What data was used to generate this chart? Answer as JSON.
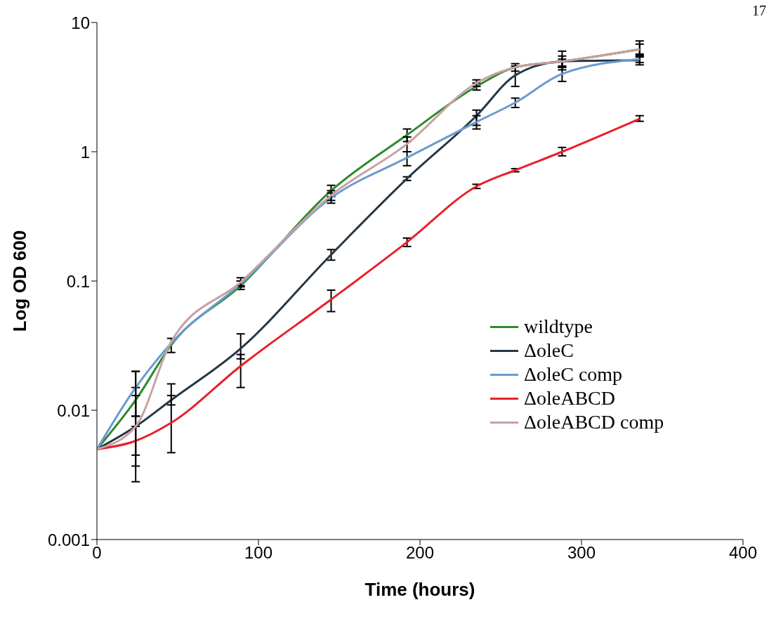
{
  "chart_data": {
    "type": "line",
    "xlabel": "Time (hours)",
    "ylabel": "Log OD 600",
    "annotations": [
      "17"
    ],
    "x": [
      0,
      24,
      46,
      89,
      145,
      192,
      235,
      259,
      288,
      336
    ],
    "series": [
      {
        "name": "wildtype",
        "color": "#2e8b2e",
        "values": [
          0.005,
          0.012,
          0.032,
          0.092,
          0.5,
          1.35,
          3.2,
          4.5,
          5.0,
          6.2
        ],
        "errors": [
          null,
          [
            0.009,
            0.015
          ],
          [
            0.028,
            0.036
          ],
          [
            0.086,
            0.1
          ],
          [
            0.45,
            0.55
          ],
          [
            1.2,
            1.5
          ],
          [
            3.0,
            3.4
          ],
          [
            4.2,
            4.8
          ],
          [
            4.5,
            5.5
          ],
          [
            5.7,
            6.8
          ]
        ]
      },
      {
        "name": "ΔoleC",
        "color": "#243746",
        "values": [
          0.005,
          0.0075,
          0.012,
          0.03,
          0.16,
          0.62,
          1.9,
          3.9,
          5.0,
          5.1
        ],
        "errors": [
          null,
          [
            0.0037,
            0.013
          ],
          [
            0.011,
            0.013
          ],
          [
            0.025,
            0.039
          ],
          [
            0.145,
            0.175
          ],
          [
            0.6,
            0.64
          ],
          [
            1.6,
            2.1
          ],
          [
            3.2,
            4.6
          ],
          [
            4.3,
            5.2
          ],
          [
            4.7,
            5.4
          ]
        ]
      },
      {
        "name": "ΔoleC comp",
        "color": "#6a9bd1",
        "values": [
          0.005,
          0.015,
          0.033,
          0.095,
          0.44,
          0.9,
          1.7,
          2.4,
          4.0,
          5.2
        ],
        "errors": [
          null,
          [
            0.009,
            0.02
          ],
          null,
          [
            0.09,
            0.1
          ],
          [
            0.4,
            0.48
          ],
          [
            0.78,
            1.0
          ],
          [
            1.5,
            1.9
          ],
          [
            2.2,
            2.6
          ],
          [
            3.5,
            4.5
          ],
          [
            4.9,
            5.5
          ]
        ]
      },
      {
        "name": "ΔoleABCD",
        "color": "#e8202a",
        "values": [
          0.005,
          0.0058,
          0.008,
          0.022,
          0.072,
          0.2,
          0.54,
          0.72,
          1.0,
          1.8
        ],
        "errors": [
          null,
          [
            0.0045,
            0.0075
          ],
          [
            0.0047,
            0.016
          ],
          [
            0.015,
            0.027
          ],
          [
            0.058,
            0.085
          ],
          [
            0.185,
            0.215
          ],
          [
            0.52,
            0.56
          ],
          [
            0.7,
            0.74
          ],
          [
            0.93,
            1.08
          ],
          [
            1.72,
            1.9
          ]
        ]
      },
      {
        "name": "ΔoleABCD comp",
        "color": "#c9a1a3",
        "values": [
          0.005,
          0.0075,
          0.034,
          0.098,
          0.46,
          1.15,
          3.4,
          4.5,
          5.0,
          6.2
        ],
        "errors": [
          null,
          [
            0.0028,
            0.02
          ],
          null,
          [
            0.092,
            0.106
          ],
          [
            0.42,
            0.5
          ],
          [
            1.0,
            1.3
          ],
          [
            3.2,
            3.6
          ],
          null,
          [
            4.6,
            6.0
          ],
          [
            5.6,
            7.2
          ]
        ]
      }
    ],
    "xlim": [
      0,
      400
    ],
    "xticks": [
      0,
      100,
      200,
      300,
      400
    ],
    "ylim": [
      0.001,
      10
    ],
    "yticks": [
      0.001,
      0.01,
      0.1,
      1,
      10
    ],
    "log": "y",
    "grid": false,
    "legend": "bottom right"
  }
}
